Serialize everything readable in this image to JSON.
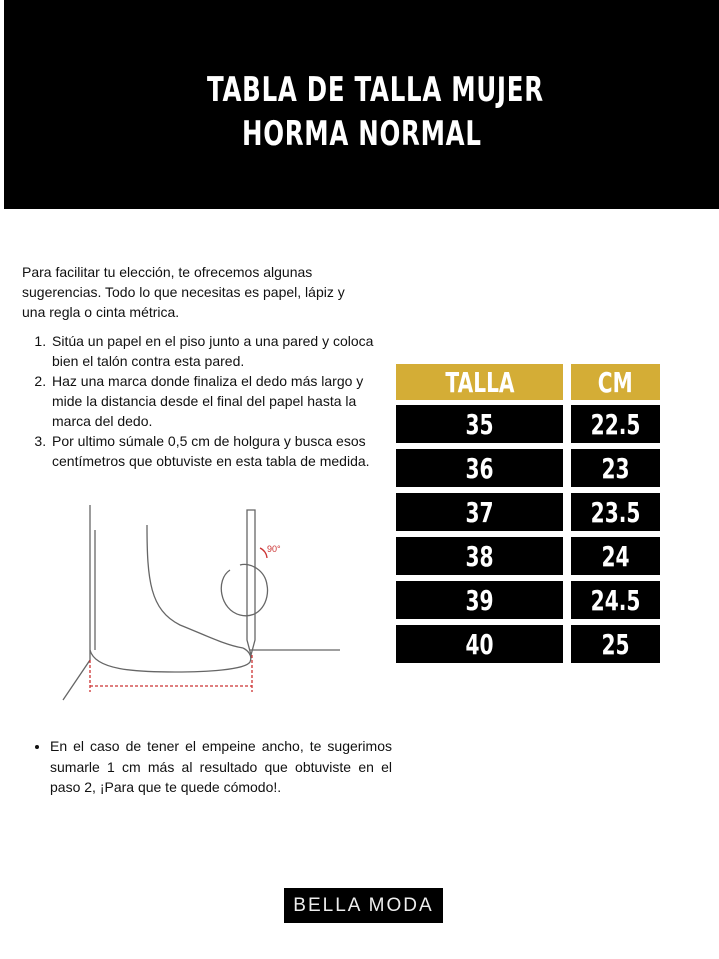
{
  "header": {
    "line1": "TABLA DE TALLA MUJER",
    "line2": "HORMA NORMAL"
  },
  "intro": "Para facilitar tu elección, te ofrecemos algunas sugerencias. Todo lo que necesitas es papel, lápiz y una regla o cinta métrica.",
  "steps": [
    "Sitúa un papel en el piso junto a una pared y coloca bien el talón contra esta pared.",
    "Haz una marca donde finaliza el dedo más largo y mide la distancia desde el final del papel hasta la marca del dedo.",
    "Por ultimo súmale 0,5 cm de holgura y busca esos centímetros que obtuviste en esta tabla de medida."
  ],
  "illustration": {
    "angle_label": "90°"
  },
  "tip": "En el caso de tener el empeine ancho, te sugerimos sumarle 1 cm más al resultado que obtuviste en el paso 2, ¡Para que te quede cómodo!.",
  "table": {
    "headers": [
      "TALLA",
      "CM"
    ],
    "rows": [
      [
        "35",
        "22.5"
      ],
      [
        "36",
        "23"
      ],
      [
        "37",
        "23.5"
      ],
      [
        "38",
        "24"
      ],
      [
        "39",
        "24.5"
      ],
      [
        "40",
        "25"
      ]
    ]
  },
  "colors": {
    "header_gold": "#d4ad36",
    "black": "#000000"
  },
  "logo": "BELLA MODA"
}
